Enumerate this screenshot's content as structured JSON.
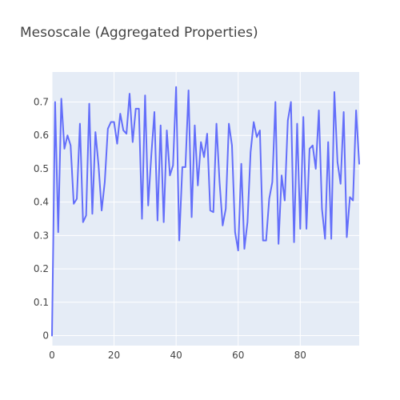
{
  "chart_data": {
    "type": "line",
    "title": "Mesoscale (Aggregated Properties)",
    "xlabel": "",
    "ylabel": "",
    "xlim": [
      0,
      99
    ],
    "ylim": [
      -0.03,
      0.79
    ],
    "x_ticks": [
      0,
      20,
      40,
      60,
      80
    ],
    "y_ticks": [
      0,
      0.1,
      0.2,
      0.3,
      0.4,
      0.5,
      0.6,
      0.7
    ],
    "x_tick_labels": [
      "0",
      "20",
      "40",
      "60",
      "80"
    ],
    "y_tick_labels": [
      "0",
      "0.1",
      "0.2",
      "0.3",
      "0.4",
      "0.5",
      "0.6",
      "0.7"
    ],
    "grid": true,
    "plot_background": "#e5ecf6",
    "series": [
      {
        "color": "#636efa",
        "x": [
          0,
          1,
          2,
          3,
          4,
          5,
          6,
          7,
          8,
          9,
          10,
          11,
          12,
          13,
          14,
          15,
          16,
          17,
          18,
          19,
          20,
          21,
          22,
          23,
          24,
          25,
          26,
          27,
          28,
          29,
          30,
          31,
          32,
          33,
          34,
          35,
          36,
          37,
          38,
          39,
          40,
          41,
          42,
          43,
          44,
          45,
          46,
          47,
          48,
          49,
          50,
          51,
          52,
          53,
          54,
          55,
          56,
          57,
          58,
          59,
          60,
          61,
          62,
          63,
          64,
          65,
          66,
          67,
          68,
          69,
          70,
          71,
          72,
          73,
          74,
          75,
          76,
          77,
          78,
          79,
          80,
          81,
          82,
          83,
          84,
          85,
          86,
          87,
          88,
          89,
          90,
          91,
          92,
          93,
          94,
          95,
          96,
          97,
          98,
          99
        ],
        "values": [
          0.0,
          0.7,
          0.31,
          0.71,
          0.56,
          0.6,
          0.57,
          0.395,
          0.41,
          0.635,
          0.34,
          0.36,
          0.695,
          0.365,
          0.61,
          0.51,
          0.375,
          0.46,
          0.62,
          0.64,
          0.64,
          0.575,
          0.665,
          0.615,
          0.605,
          0.725,
          0.58,
          0.68,
          0.68,
          0.35,
          0.72,
          0.39,
          0.54,
          0.67,
          0.345,
          0.63,
          0.34,
          0.615,
          0.48,
          0.51,
          0.745,
          0.285,
          0.505,
          0.505,
          0.735,
          0.355,
          0.63,
          0.45,
          0.58,
          0.535,
          0.605,
          0.375,
          0.37,
          0.635,
          0.46,
          0.33,
          0.38,
          0.635,
          0.57,
          0.31,
          0.255,
          0.515,
          0.26,
          0.34,
          0.55,
          0.64,
          0.595,
          0.615,
          0.285,
          0.285,
          0.41,
          0.46,
          0.7,
          0.275,
          0.48,
          0.405,
          0.645,
          0.7,
          0.28,
          0.635,
          0.32,
          0.655,
          0.32,
          0.56,
          0.57,
          0.5,
          0.675,
          0.38,
          0.29,
          0.58,
          0.29,
          0.73,
          0.52,
          0.455,
          0.67,
          0.295,
          0.415,
          0.405,
          0.675,
          0.515
        ]
      }
    ]
  }
}
